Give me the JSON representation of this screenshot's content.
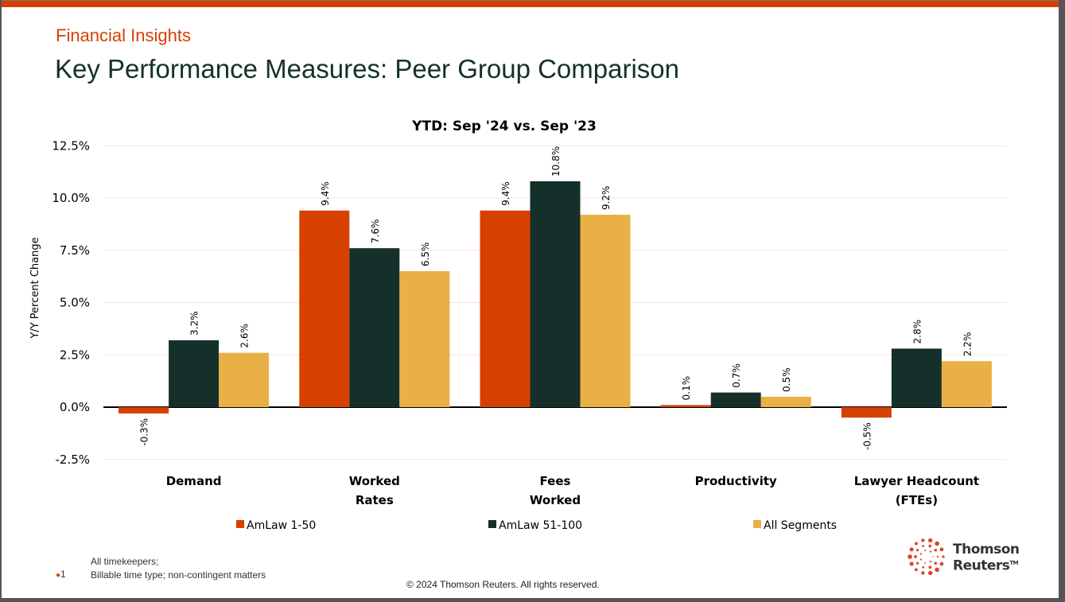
{
  "header": {
    "kicker": "Financial Insights",
    "title": "Key Performance Measures: Peer Group Comparison"
  },
  "colors": {
    "accent": "#d64000",
    "dark_green": "#15302a",
    "gold": "#e8b045",
    "gridline": "#f5e6d6"
  },
  "chart_data": {
    "type": "bar",
    "title": "YTD: Sep '24 vs. Sep '23",
    "xlabel": "",
    "ylabel": "Y/Y Percent Change",
    "ylim": [
      -2.5,
      12.5
    ],
    "yticks": [
      -2.5,
      0.0,
      2.5,
      5.0,
      7.5,
      10.0,
      12.5
    ],
    "ytick_labels": [
      "-2.5%",
      "0.0%",
      "2.5%",
      "5.0%",
      "7.5%",
      "10.0%",
      "12.5%"
    ],
    "grid": true,
    "legend_position": "bottom",
    "categories": [
      [
        "Demand"
      ],
      [
        "Worked",
        "Rates"
      ],
      [
        "Fees",
        "Worked"
      ],
      [
        "Productivity"
      ],
      [
        "Lawyer Headcount",
        "(FTEs)"
      ]
    ],
    "series": [
      {
        "name": "AmLaw 1-50",
        "color": "#d64000",
        "values": [
          -0.3,
          9.4,
          9.4,
          0.1,
          -0.5
        ],
        "labels": [
          "-0.3%",
          "9.4%",
          "9.4%",
          "0.1%",
          "-0.5%"
        ]
      },
      {
        "name": "AmLaw 51-100",
        "color": "#15302a",
        "values": [
          3.2,
          7.6,
          10.8,
          0.7,
          2.8
        ],
        "labels": [
          "3.2%",
          "7.6%",
          "10.8%",
          "0.7%",
          "2.8%"
        ]
      },
      {
        "name": "All Segments",
        "color": "#e8b045",
        "values": [
          2.6,
          6.5,
          9.2,
          0.5,
          2.2
        ],
        "labels": [
          "2.6%",
          "6.5%",
          "9.2%",
          "0.5%",
          "2.2%"
        ]
      }
    ]
  },
  "footer": {
    "note_line1": "All timekeepers;",
    "note_line2": "Billable time type; non-contingent matters",
    "bullet_number": "1",
    "copyright": "© 2024 Thomson Reuters. All rights reserved.",
    "logo_line1": "Thomson",
    "logo_line2": "Reuters",
    "logo_tm": "TM",
    "logo_icon": "dotted-circle-logo-icon"
  }
}
